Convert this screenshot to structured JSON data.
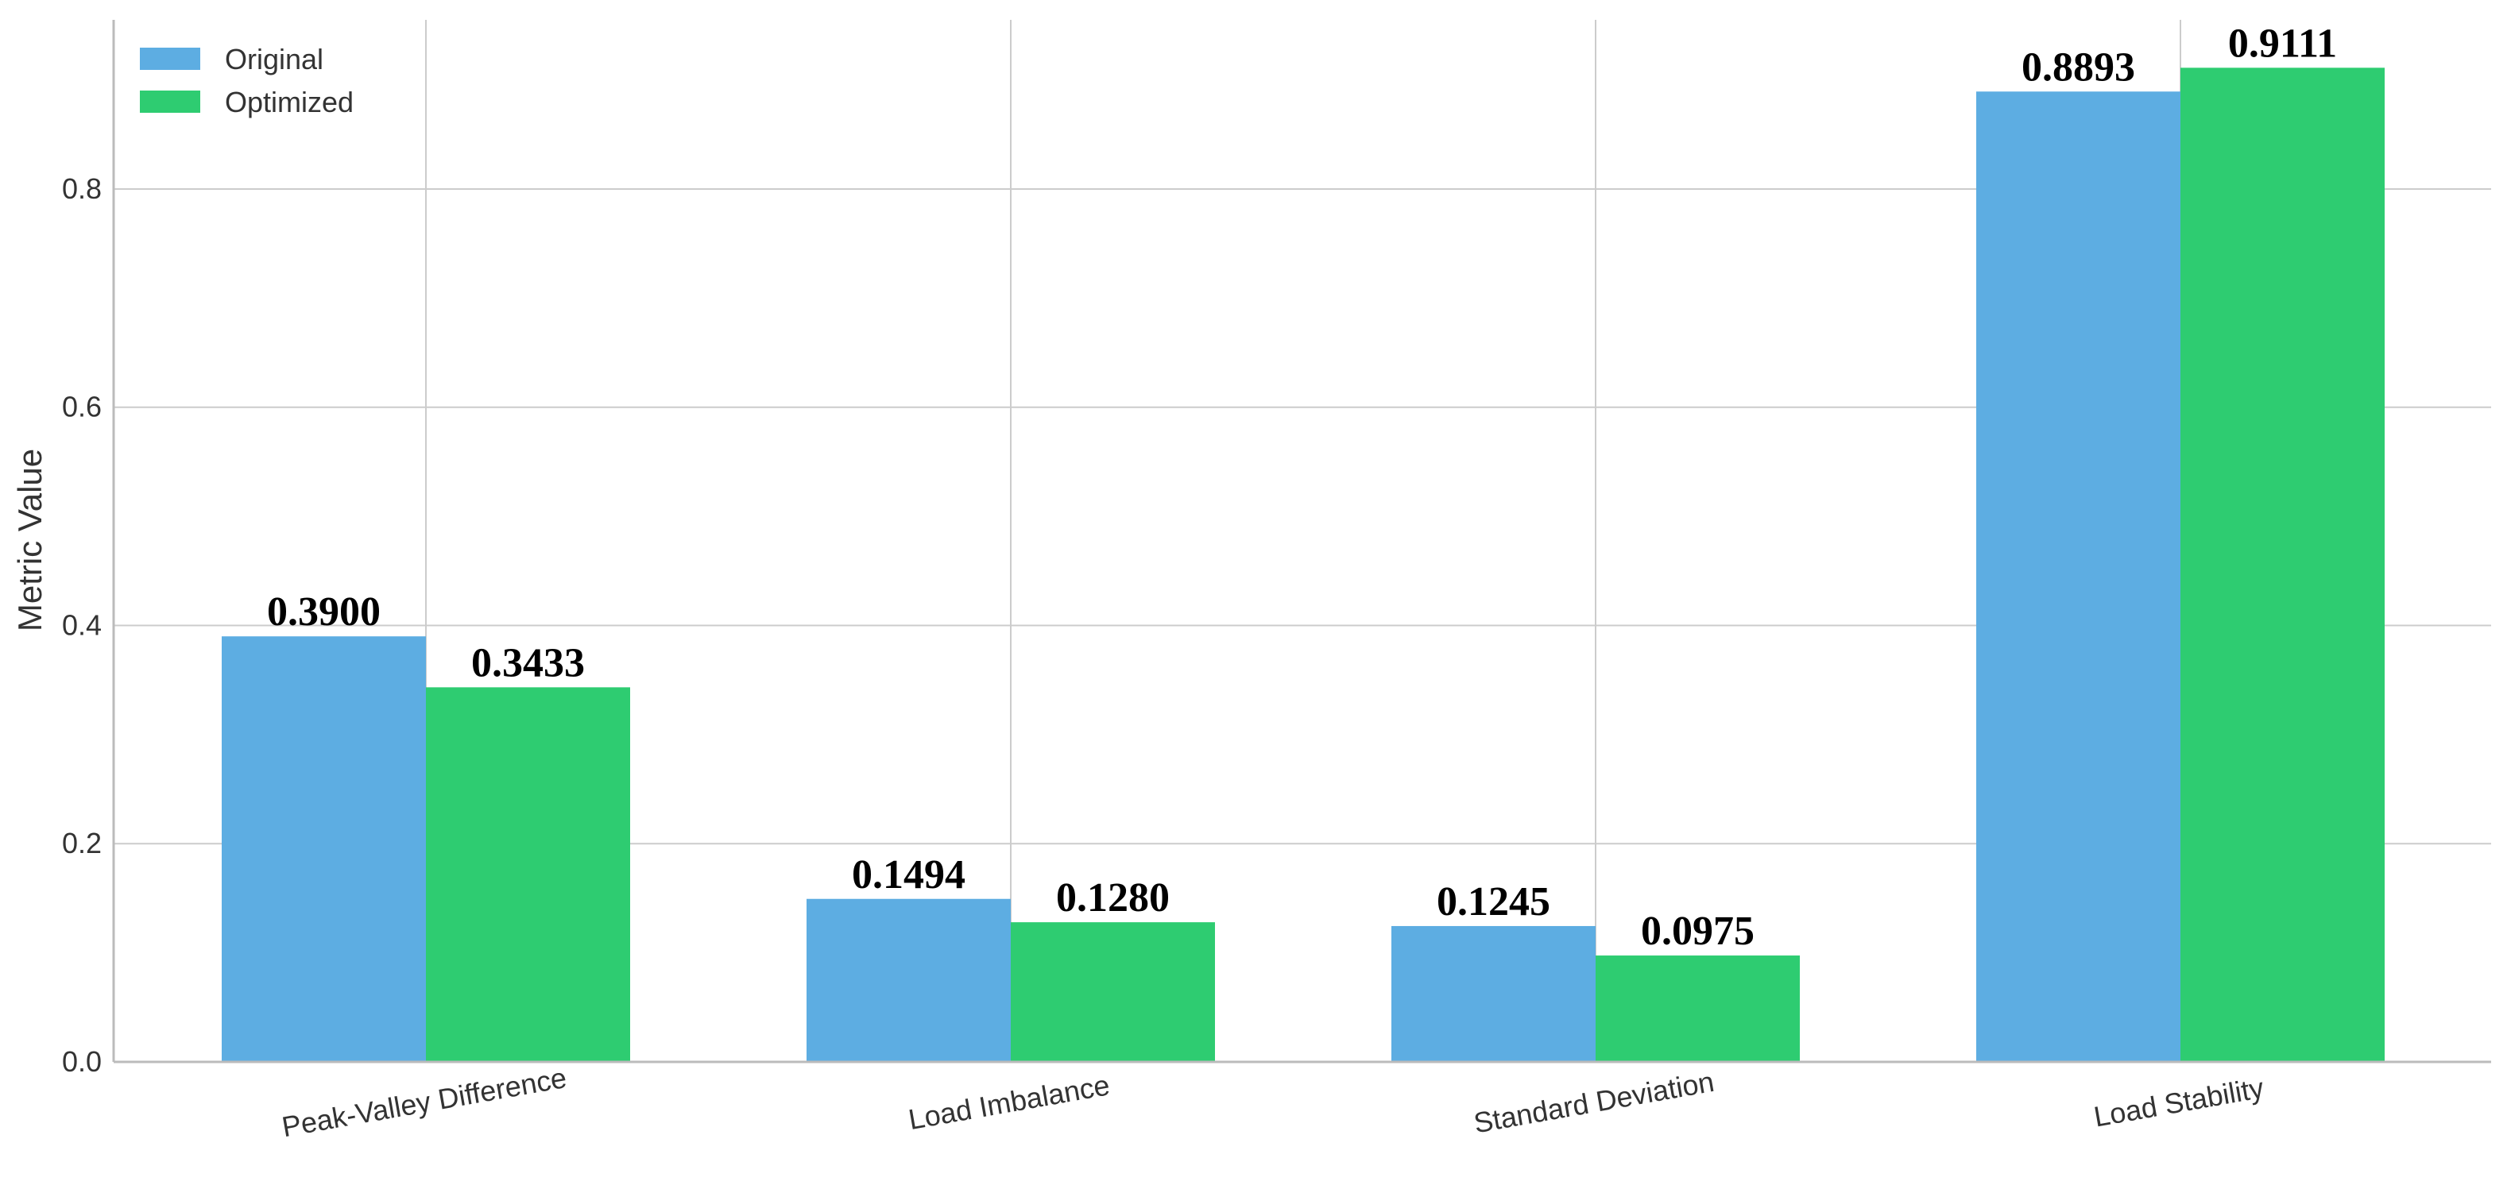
{
  "chart_data": {
    "type": "bar",
    "title": "",
    "xlabel": "",
    "ylabel": "Metric Value",
    "categories": [
      "Peak-Valley Difference",
      "Load Imbalance",
      "Standard Deviation",
      "Load Stability"
    ],
    "series": [
      {
        "name": "Original",
        "color": "#5DADE2",
        "values": [
          0.39,
          0.1494,
          0.1245,
          0.8893
        ]
      },
      {
        "name": "Optimized",
        "color": "#2ECC71",
        "values": [
          0.3433,
          0.128,
          0.0975,
          0.9111
        ]
      }
    ],
    "value_labels": [
      [
        "0.3900",
        "0.1494",
        "0.1245",
        "0.8893"
      ],
      [
        "0.3433",
        "0.1280",
        "0.0975",
        "0.9111"
      ]
    ],
    "ylim": [
      0,
      0.955
    ],
    "yticks": [
      0.0,
      0.2,
      0.4,
      0.6,
      0.8
    ],
    "ytick_labels": [
      "0.0",
      "0.2",
      "0.4",
      "0.6",
      "0.8"
    ],
    "grid": true,
    "legend": "top-left"
  }
}
